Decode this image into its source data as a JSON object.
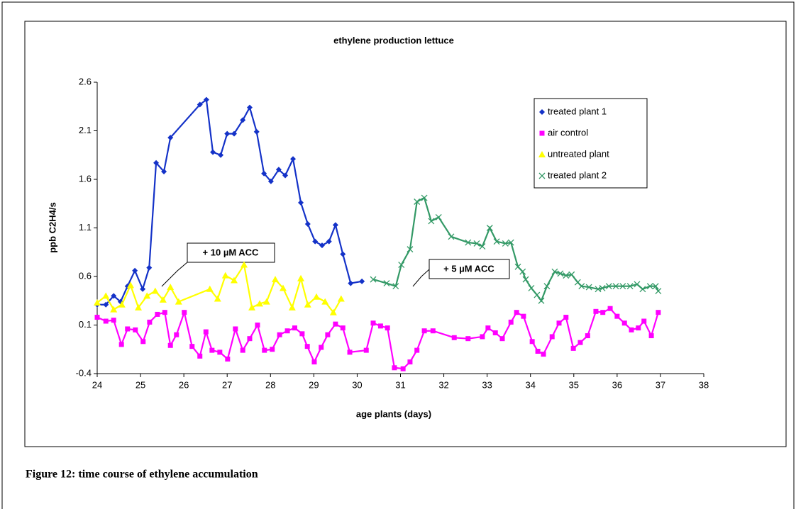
{
  "chart_data": {
    "type": "line",
    "title": "ethylene production lettuce",
    "x_label": "age plants (days)",
    "y_label": "ppb C2H4/s",
    "xlim": [
      24,
      38
    ],
    "xticks": [
      24,
      25,
      26,
      27,
      28,
      29,
      30,
      31,
      32,
      33,
      34,
      35,
      36,
      37,
      38
    ],
    "ylim": [
      -0.4,
      2.6
    ],
    "yticks": [
      -0.4,
      0.1,
      0.6,
      1.1,
      1.6,
      2.1,
      2.6
    ],
    "grid": false,
    "legend": "upper right",
    "annotations": [
      "+ 10 µM ACC",
      "+ 5 µM ACC"
    ],
    "series": [
      {
        "name": "treated plant 1",
        "color": "#1432c8",
        "marker": "diamond",
        "x": [
          24.0,
          24.2,
          24.38,
          24.54,
          24.7,
          24.87,
          25.05,
          25.2,
          25.36,
          25.54,
          25.69,
          26.37,
          26.52,
          26.67,
          26.85,
          27.0,
          27.16,
          27.36,
          27.52,
          27.68,
          27.85,
          28.01,
          28.19,
          28.34,
          28.52,
          28.7,
          28.86,
          29.03,
          29.19,
          29.35,
          29.5,
          29.67,
          29.85,
          30.11
        ],
        "values": [
          0.31,
          0.31,
          0.4,
          0.34,
          0.5,
          0.66,
          0.47,
          0.69,
          1.77,
          1.68,
          2.03,
          2.37,
          2.42,
          1.88,
          1.85,
          2.07,
          2.07,
          2.21,
          2.34,
          2.09,
          1.66,
          1.58,
          1.7,
          1.64,
          1.81,
          1.36,
          1.14,
          0.96,
          0.92,
          0.96,
          1.13,
          0.83,
          0.53,
          0.55
        ]
      },
      {
        "name": "air control",
        "color": "#ff00ff",
        "marker": "square",
        "x": [
          24.0,
          24.2,
          24.38,
          24.56,
          24.7,
          24.88,
          25.06,
          25.21,
          25.39,
          25.56,
          25.69,
          25.83,
          26.01,
          26.19,
          26.37,
          26.51,
          26.65,
          26.83,
          27.01,
          27.19,
          27.36,
          27.52,
          27.7,
          27.86,
          28.04,
          28.21,
          28.39,
          28.56,
          28.73,
          28.85,
          29.01,
          29.17,
          29.32,
          29.5,
          29.67,
          29.83,
          30.21,
          30.37,
          30.54,
          30.7,
          30.86,
          31.06,
          31.22,
          31.38,
          31.55,
          31.75,
          32.24,
          32.56,
          32.89,
          33.02,
          33.19,
          33.35,
          33.55,
          33.68,
          33.84,
          34.04,
          34.17,
          34.3,
          34.5,
          34.66,
          34.82,
          34.99,
          35.15,
          35.32,
          35.51,
          35.67,
          35.84,
          36.0,
          36.17,
          36.33,
          36.49,
          36.62,
          36.79,
          36.95
        ],
        "values": [
          0.18,
          0.14,
          0.15,
          -0.1,
          0.06,
          0.05,
          -0.07,
          0.13,
          0.21,
          0.23,
          -0.11,
          0.0,
          0.23,
          -0.12,
          -0.22,
          0.03,
          -0.16,
          -0.18,
          -0.25,
          0.06,
          -0.16,
          -0.04,
          0.1,
          -0.16,
          -0.15,
          0.0,
          0.04,
          0.07,
          0.01,
          -0.12,
          -0.28,
          -0.13,
          0.0,
          0.11,
          0.07,
          -0.18,
          -0.16,
          0.12,
          0.09,
          0.07,
          -0.34,
          -0.35,
          -0.28,
          -0.16,
          0.04,
          0.04,
          -0.03,
          -0.04,
          -0.02,
          0.07,
          0.02,
          -0.04,
          0.13,
          0.23,
          0.19,
          -0.07,
          -0.17,
          -0.2,
          -0.02,
          0.12,
          0.18,
          -0.14,
          -0.08,
          -0.01,
          0.24,
          0.23,
          0.27,
          0.19,
          0.12,
          0.05,
          0.07,
          0.14,
          -0.01,
          0.23
        ]
      },
      {
        "name": "untreated plant",
        "color": "#ffff00",
        "marker": "triangle",
        "x": [
          24.0,
          24.2,
          24.38,
          24.57,
          24.77,
          24.95,
          25.15,
          25.34,
          25.52,
          25.69,
          25.88,
          26.6,
          26.78,
          26.96,
          27.16,
          27.39,
          27.57,
          27.75,
          27.91,
          28.11,
          28.29,
          28.5,
          28.7,
          28.86,
          29.06,
          29.26,
          29.45,
          29.63
        ],
        "values": [
          0.33,
          0.4,
          0.26,
          0.31,
          0.51,
          0.28,
          0.4,
          0.45,
          0.36,
          0.49,
          0.34,
          0.47,
          0.37,
          0.61,
          0.56,
          0.72,
          0.28,
          0.32,
          0.34,
          0.57,
          0.48,
          0.28,
          0.58,
          0.31,
          0.39,
          0.34,
          0.23,
          0.37
        ]
      },
      {
        "name": "treated plant 2",
        "color": "#339966",
        "marker": "x",
        "x": [
          30.37,
          30.68,
          30.89,
          31.02,
          31.22,
          31.38,
          31.55,
          31.71,
          31.88,
          32.17,
          32.56,
          32.76,
          32.89,
          33.06,
          33.22,
          33.42,
          33.55,
          33.71,
          33.82,
          33.89,
          34.02,
          34.15,
          34.25,
          34.38,
          34.56,
          34.69,
          34.82,
          34.95,
          35.09,
          35.18,
          35.35,
          35.56,
          35.66,
          35.81,
          35.97,
          36.13,
          36.3,
          36.46,
          36.59,
          36.76,
          36.89,
          36.95
        ],
        "values": [
          0.57,
          0.53,
          0.5,
          0.72,
          0.88,
          1.37,
          1.41,
          1.17,
          1.21,
          1.01,
          0.95,
          0.94,
          0.91,
          1.1,
          0.96,
          0.94,
          0.95,
          0.7,
          0.65,
          0.57,
          0.48,
          0.41,
          0.35,
          0.5,
          0.65,
          0.63,
          0.61,
          0.62,
          0.54,
          0.5,
          0.49,
          0.47,
          0.48,
          0.5,
          0.5,
          0.5,
          0.5,
          0.52,
          0.47,
          0.5,
          0.5,
          0.45
        ]
      }
    ]
  },
  "caption": "Figure 12: time course of ethylene accumulation"
}
